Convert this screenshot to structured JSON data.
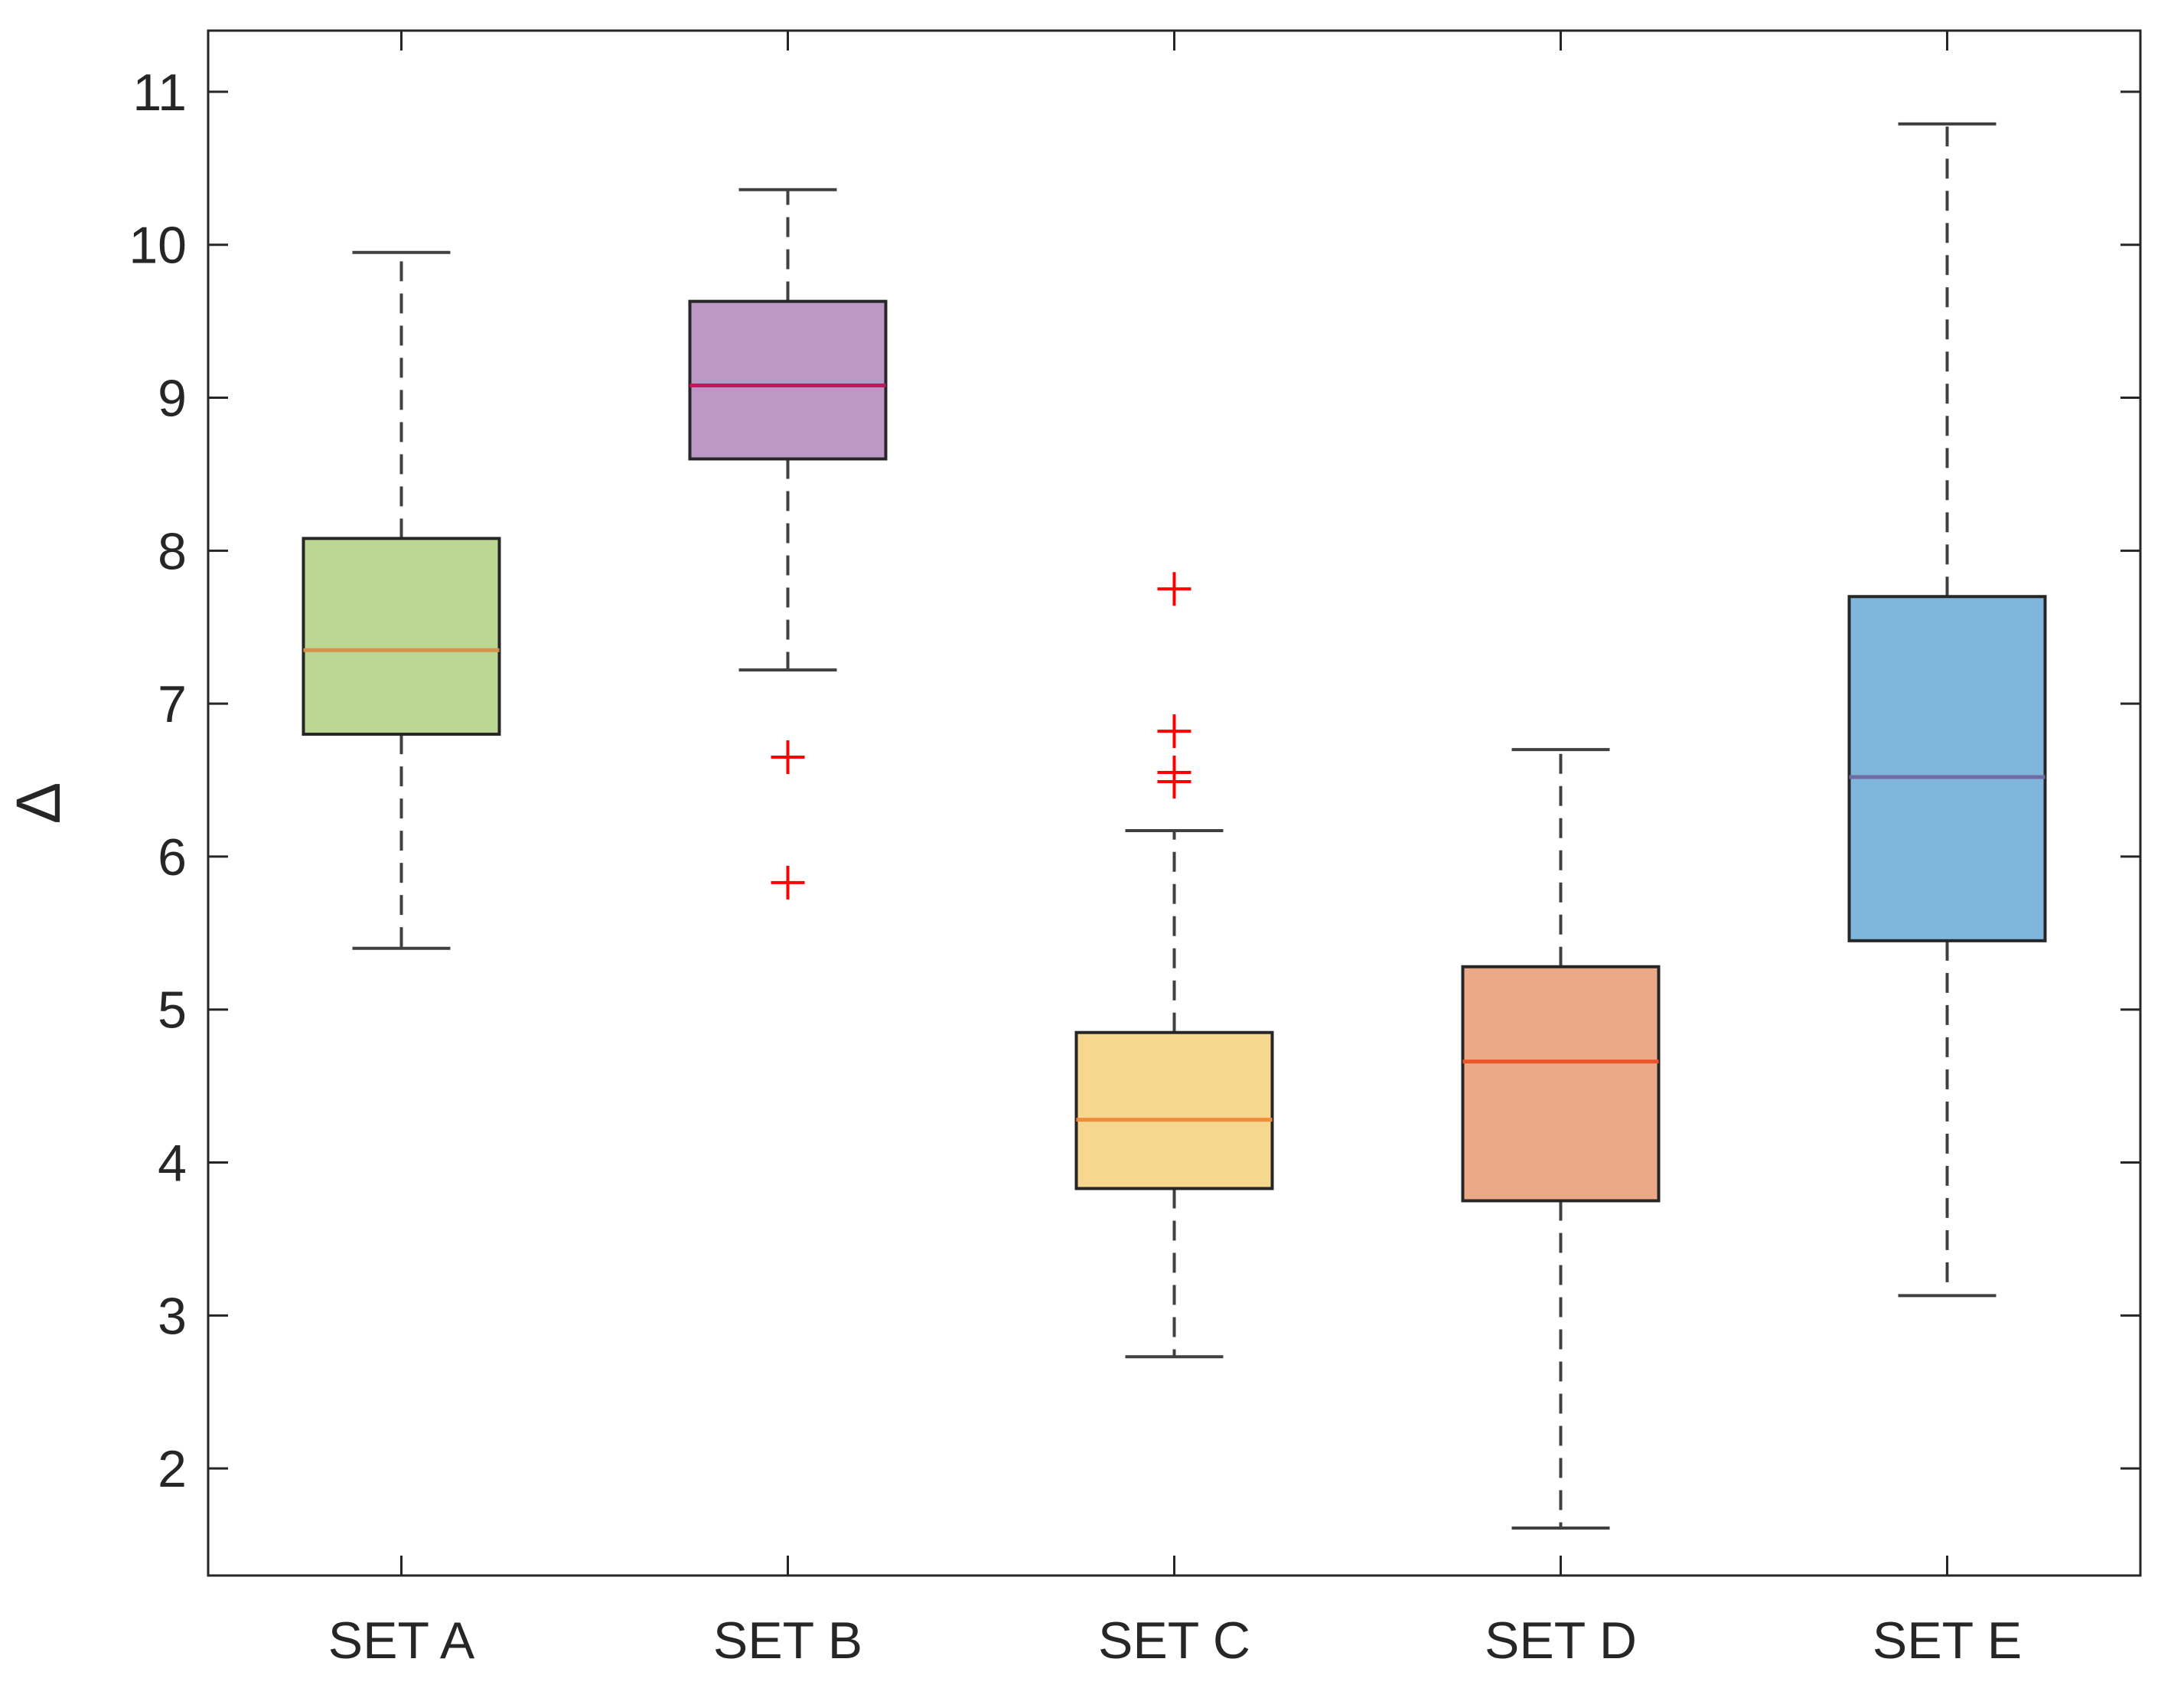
{
  "chart_data": {
    "type": "boxplot",
    "title": "",
    "xlabel": "",
    "ylabel": "Δ",
    "ylim": [
      1.3,
      11.4
    ],
    "yticks": [
      2,
      3,
      4,
      5,
      6,
      7,
      8,
      9,
      10,
      11
    ],
    "grid": false,
    "categories": [
      "SET A",
      "SET B",
      "SET C",
      "SET D",
      "SET E"
    ],
    "boxes": [
      {
        "name": "SET A",
        "whisker_low": 5.4,
        "q1": 6.8,
        "median": 7.35,
        "q3": 8.08,
        "whisker_high": 9.95,
        "outliers": [],
        "fill": "#bcd794",
        "median_color": "#d4924a"
      },
      {
        "name": "SET B",
        "whisker_low": 7.22,
        "q1": 8.6,
        "median": 9.08,
        "q3": 9.63,
        "whisker_high": 10.36,
        "outliers": [
          6.65,
          5.83
        ],
        "fill": "#bd97c6",
        "median_color": "#c2185b"
      },
      {
        "name": "SET C",
        "whisker_low": 2.73,
        "q1": 3.83,
        "median": 4.28,
        "q3": 4.85,
        "whisker_high": 6.17,
        "outliers": [
          7.75,
          6.82,
          6.55,
          6.49
        ],
        "fill": "#f5d78e",
        "median_color": "#f08c3c"
      },
      {
        "name": "SET D",
        "whisker_low": 1.61,
        "q1": 3.75,
        "median": 4.66,
        "q3": 5.28,
        "whisker_high": 6.7,
        "outliers": [],
        "fill": "#eba988",
        "median_color": "#e8562e"
      },
      {
        "name": "SET E",
        "whisker_low": 3.13,
        "q1": 5.45,
        "median": 6.52,
        "q3": 7.7,
        "whisker_high": 10.79,
        "outliers": [],
        "fill": "#7fb6dc",
        "median_color": "#6f6ba4"
      }
    ],
    "outlier_color": "#ff0000",
    "whisker_color": "#404040",
    "box_edge_color": "#262626"
  }
}
